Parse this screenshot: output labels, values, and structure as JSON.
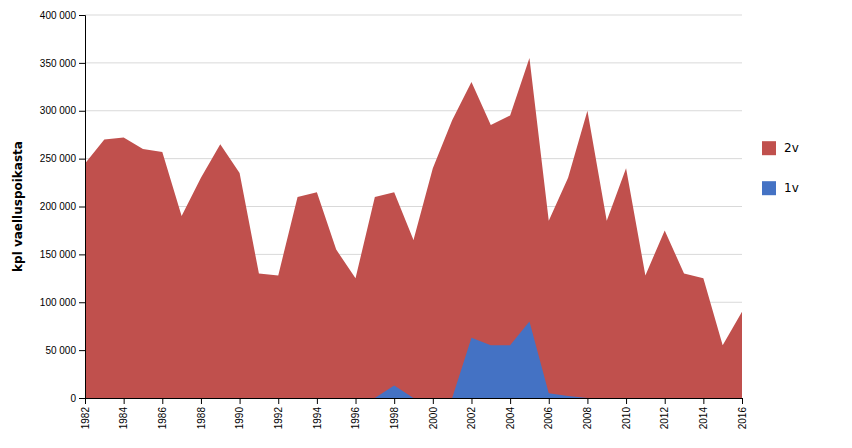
{
  "chart_data": {
    "type": "area",
    "ylabel": "kpl vaelluspoikasta",
    "x": [
      1982,
      1983,
      1984,
      1985,
      1986,
      1987,
      1988,
      1989,
      1990,
      1991,
      1992,
      1993,
      1994,
      1995,
      1996,
      1997,
      1998,
      1999,
      2000,
      2001,
      2002,
      2003,
      2004,
      2005,
      2006,
      2007,
      2008,
      2009,
      2010,
      2011,
      2012,
      2013,
      2014,
      2015,
      2016
    ],
    "series": [
      {
        "name": "2v",
        "color": "#c0504d",
        "values": [
          245000,
          270000,
          272000,
          260000,
          257000,
          190000,
          230000,
          265000,
          235000,
          130000,
          128000,
          210000,
          215000,
          155000,
          125000,
          210000,
          215000,
          165000,
          240000,
          290000,
          330000,
          285000,
          295000,
          355000,
          185000,
          230000,
          300000,
          185000,
          240000,
          128000,
          175000,
          130000,
          125000,
          55000,
          90000
        ]
      },
      {
        "name": "1v",
        "color": "#4472c4",
        "values": [
          0,
          0,
          0,
          0,
          0,
          0,
          0,
          0,
          0,
          0,
          0,
          0,
          0,
          0,
          0,
          0,
          13000,
          0,
          0,
          0,
          63000,
          55000,
          55000,
          80000,
          5000,
          2000,
          0,
          0,
          0,
          0,
          0,
          0,
          0,
          0,
          0
        ]
      }
    ],
    "xlim": [
      1982,
      2016
    ],
    "xticks": [
      1982,
      1984,
      1986,
      1988,
      1990,
      1992,
      1994,
      1996,
      1998,
      2000,
      2002,
      2004,
      2006,
      2008,
      2010,
      2012,
      2014,
      2016
    ],
    "ylim": [
      0,
      400000
    ],
    "yticks": [
      0,
      {
        "value": 50000,
        "label": "50 000"
      },
      {
        "value": 100000,
        "label": "100 000"
      },
      {
        "value": 150000,
        "label": "150 000"
      },
      {
        "value": 200000,
        "label": "200 000"
      },
      {
        "value": 250000,
        "label": "250 000"
      },
      {
        "value": 300000,
        "label": "300 000"
      },
      {
        "value": 350000,
        "label": "350 000"
      },
      {
        "value": 400000,
        "label": "400 000"
      }
    ],
    "grid": "y",
    "legend": "right"
  }
}
